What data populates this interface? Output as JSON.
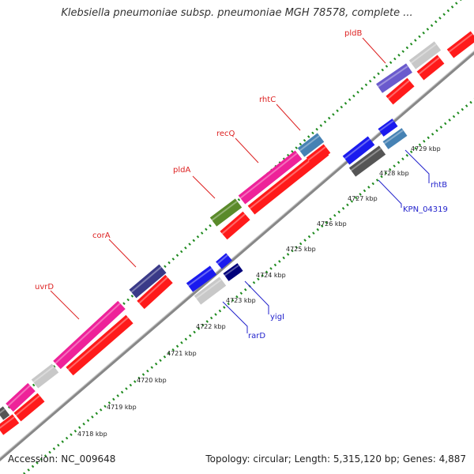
{
  "title": "Klebsiella pneumoniae subsp. pneumoniae MGH 78578, complete ...",
  "accession": "Accession: NC_009648",
  "summary": "Topology: circular; Length: 5,315,120 bp; Genes: 4,887",
  "colors": {
    "background": "#ffffff",
    "backbone": "#777777",
    "tick_dots": "#1e8a1e",
    "forward_label": "#dd2222",
    "reverse_label": "#2222cc",
    "cds_forward": "#ff1a1a",
    "cds_reverse": "#1a1aee",
    "gene_pink": "#ee2299",
    "gene_gray": "#c8c8c8",
    "gene_darkgray": "#555555",
    "gene_purple": "#3a3a88",
    "gene_lavender": "#6a5acd",
    "gene_olive": "#5a8a2a",
    "gene_steel": "#4682b4",
    "gene_navy": "#00007a"
  },
  "scale": {
    "unit": "kbp",
    "labels": [
      "4718 kbp",
      "4719 kbp",
      "4720 kbp",
      "4721 kbp",
      "4722 kbp",
      "4723 kbp",
      "4724 kbp",
      "4725 kbp",
      "4726 kbp",
      "4727 kbp",
      "4728 kbp",
      "4729 kbp"
    ]
  },
  "forward_genes": [
    {
      "name": "uvrD",
      "color": "#ee2299"
    },
    {
      "name": "corA",
      "color": "#3a3a88"
    },
    {
      "name": "pldA",
      "color": "#5a8a2a"
    },
    {
      "name": "recQ",
      "color": "#ee2299"
    },
    {
      "name": "rhtC",
      "color": "#4682b4"
    },
    {
      "name": "pldB",
      "color": "#6a5acd"
    }
  ],
  "reverse_genes": [
    {
      "name": "rarD",
      "color": "#c8c8c8"
    },
    {
      "name": "yigI",
      "color": "#00007a"
    },
    {
      "name": "KPN_04319",
      "color": "#555555"
    },
    {
      "name": "rhtB",
      "color": "#4682b4"
    }
  ]
}
